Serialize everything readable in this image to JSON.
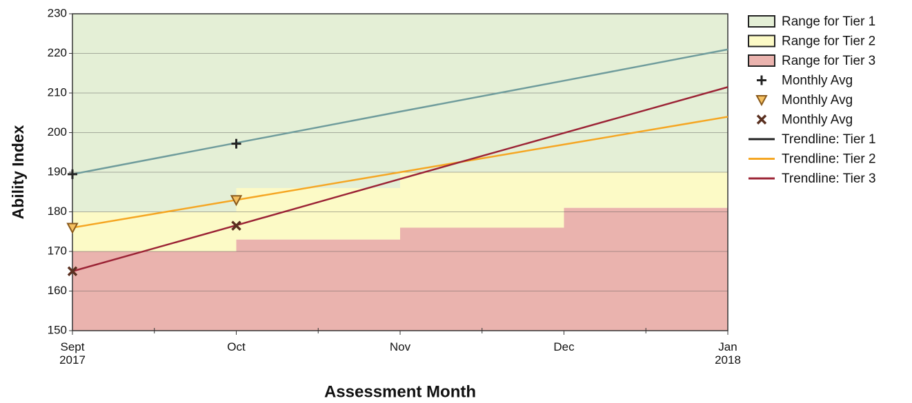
{
  "chart_data": {
    "type": "tiered-trend",
    "y_label": "Ability Index",
    "x_label": "Assessment Month",
    "categories": [
      "Sept\n2017",
      "Oct",
      "Nov",
      "Dec",
      "Jan\n2018"
    ],
    "ylim": [
      150,
      230
    ],
    "yticks": [
      150,
      160,
      170,
      180,
      190,
      200,
      210,
      220,
      230
    ],
    "grid": true,
    "series": [
      {
        "name": "Range for Tier 1",
        "kind": "range",
        "color": "#e4efd6",
        "low": [
          180,
          186,
          190,
          190
        ],
        "high": [
          230,
          230,
          230,
          230
        ]
      },
      {
        "name": "Range for Tier 2",
        "kind": "range",
        "color": "#fcfac6",
        "low": [
          170,
          173,
          176,
          181
        ],
        "high": [
          180,
          186,
          190,
          190
        ]
      },
      {
        "name": "Range for Tier 3",
        "kind": "range",
        "color": "#eab3ae",
        "low": [
          150,
          150,
          150,
          150
        ],
        "high": [
          170,
          173,
          176,
          181
        ]
      },
      {
        "name": "Monthly Avg",
        "kind": "marker",
        "marker": "plus",
        "color": "#222222",
        "values": [
          189.5,
          197.2,
          null,
          null,
          null
        ]
      },
      {
        "name": "Monthly Avg",
        "kind": "marker",
        "marker": "triangle",
        "color": "#8a5a1c",
        "values": [
          176,
          183,
          null,
          null,
          null
        ]
      },
      {
        "name": "Monthly Avg",
        "kind": "marker",
        "marker": "cross",
        "color": "#5a3020",
        "values": [
          165,
          176.5,
          null,
          null,
          null
        ]
      },
      {
        "name": "Trendline: Tier 1",
        "kind": "line",
        "color": "#6f9c9c",
        "legend_color": "#222222",
        "values": [
          189.5,
          197.4,
          205.3,
          213.1,
          221
        ]
      },
      {
        "name": "Trendline: Tier 2",
        "kind": "line",
        "color": "#f5a623",
        "values": [
          176,
          183,
          190,
          197,
          204
        ]
      },
      {
        "name": "Trendline: Tier 3",
        "kind": "line",
        "color": "#9b2335",
        "values": [
          165,
          176.6,
          188.3,
          199.9,
          211.5
        ]
      }
    ]
  }
}
